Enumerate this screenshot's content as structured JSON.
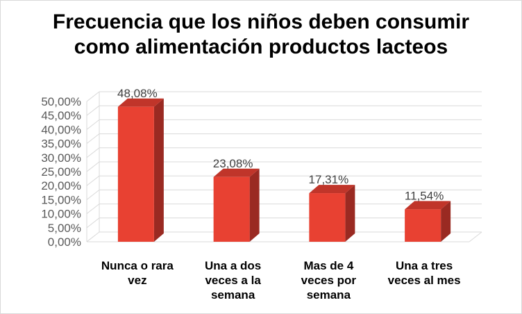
{
  "chart_data": {
    "type": "bar",
    "title_lines": [
      "Frecuencia que los niños deben consumir",
      "como alimentación productos lacteos"
    ],
    "categories": [
      [
        "Nunca o rara",
        "vez"
      ],
      [
        "Una a dos",
        "veces a la",
        "semana"
      ],
      [
        "Mas de 4",
        "veces por",
        "semana"
      ],
      [
        "Una a tres",
        "veces al mes"
      ]
    ],
    "values": [
      48.08,
      23.08,
      17.31,
      11.54
    ],
    "data_labels": [
      "48,08%",
      "23,08%",
      "17,31%",
      "11,54%"
    ],
    "y_ticks": [
      "0,00%",
      "5,00%",
      "10,00%",
      "15,00%",
      "20,00%",
      "25,00%",
      "30,00%",
      "35,00%",
      "40,00%",
      "45,00%",
      "50,00%"
    ],
    "ylim": [
      0,
      50
    ],
    "grid": true,
    "bar_color": "#e84132",
    "bar_side_color": "#9a2a22",
    "bar_top_color": "#c0352a"
  }
}
